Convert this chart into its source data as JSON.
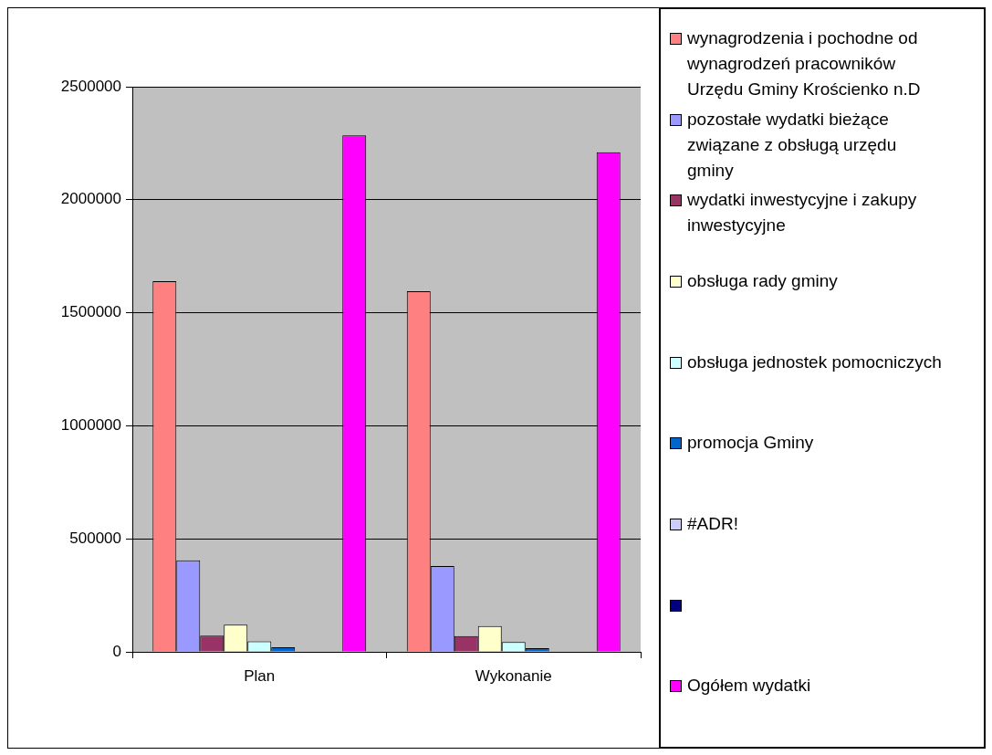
{
  "chart_data": {
    "type": "bar",
    "categories": [
      "Plan",
      "Wykonanie"
    ],
    "series": [
      {
        "name": "wynagrodzenia i pochodne od wynagrodzeń pracowników Urzędu Gminy Krościenko n.D",
        "color": "#ff8080",
        "values": [
          1640000,
          1595000
        ]
      },
      {
        "name": "pozostałe wydatki bieżące związane z obsługą urzędu gminy",
        "color": "#9999ff",
        "values": [
          405000,
          380000
        ]
      },
      {
        "name": "wydatki inwestycyjne i zakupy inwestycyjne",
        "color": "#993366",
        "values": [
          72000,
          70000
        ]
      },
      {
        "name": "obsługa rady gminy",
        "color": "#ffffcc",
        "values": [
          120000,
          114000
        ]
      },
      {
        "name": "obsługa jednostek pomocniczych",
        "color": "#ccffff",
        "values": [
          46000,
          43000
        ]
      },
      {
        "name": "promocja Gminy",
        "color": "#0066cc",
        "values": [
          20000,
          16000
        ]
      },
      {
        "name": "#ADR!",
        "color": "#ccccff",
        "values": [
          0,
          null
        ]
      },
      {
        "color": "#000080",
        "values": [
          null,
          null
        ]
      },
      {
        "name": "Ogółem wydatki",
        "color": "#ff00ff",
        "values": [
          2285000,
          2210000
        ]
      }
    ],
    "ylim": [
      0,
      2500000
    ],
    "yticks": [
      0,
      500000,
      1000000,
      1500000,
      2000000,
      2500000
    ],
    "grid": "y",
    "legend": "right"
  }
}
